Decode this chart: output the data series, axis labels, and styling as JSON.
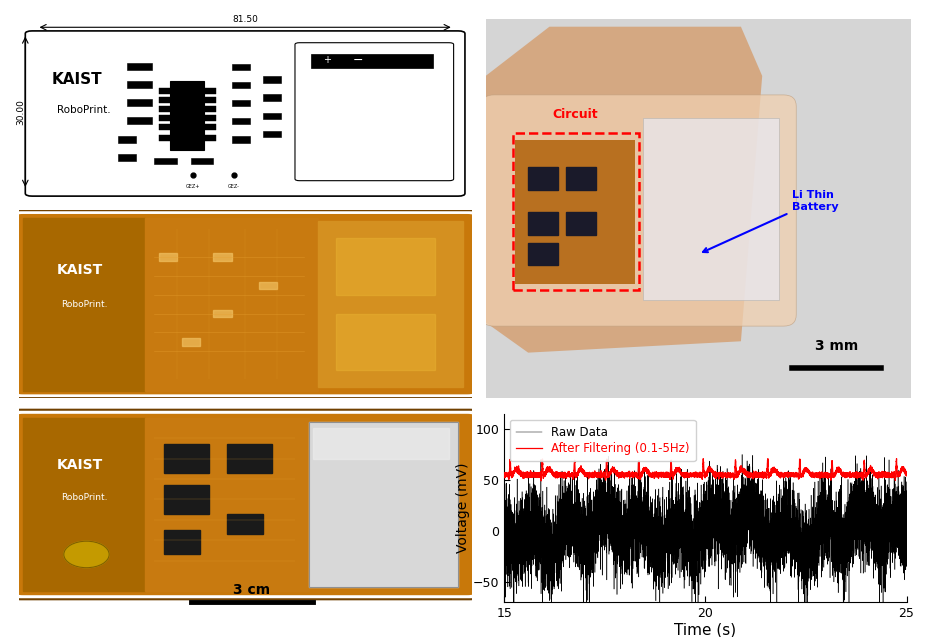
{
  "layout": {
    "fig_width": 9.25,
    "fig_height": 6.37,
    "dpi": 100
  },
  "plot": {
    "xlim": [
      15,
      25
    ],
    "ylim": [
      -70,
      115
    ],
    "yticks": [
      -50,
      0,
      50,
      100
    ],
    "xticks": [
      15,
      20,
      25
    ],
    "xlabel": "Time (s)",
    "ylabel": "Voltage (mV)",
    "legend_raw": "Raw Data",
    "legend_filtered": "After Filtering (0.1-5Hz)",
    "raw_color": "#000000",
    "filtered_color": "#ff0000",
    "background_color": "#ffffff"
  },
  "schematic": {
    "dimension_w": "81.50",
    "dimension_h": "30.00",
    "bg_color": "#ffffff",
    "line_color": "#000000"
  },
  "pcb_colors": {
    "orange_main": "#c8780a",
    "orange_dark": "#8b5200",
    "orange_mid": "#b86800",
    "silver": "#c0c0c0",
    "silver_dark": "#909090",
    "text_white": "#ffffff",
    "ic_black": "#1a1a1a"
  },
  "wrist": {
    "skin_color": "#d4a882",
    "bg_color": "#cccccc",
    "band_color": "#e8c4a0",
    "circuit_box_color": "#cc0000",
    "battery_color": "#0000cc"
  },
  "annotations": {
    "circuit_label": "Circuit",
    "battery_label": "Li Thin\nBattery",
    "scale_3mm": "3 mm",
    "scale_3cm": "3 cm"
  }
}
